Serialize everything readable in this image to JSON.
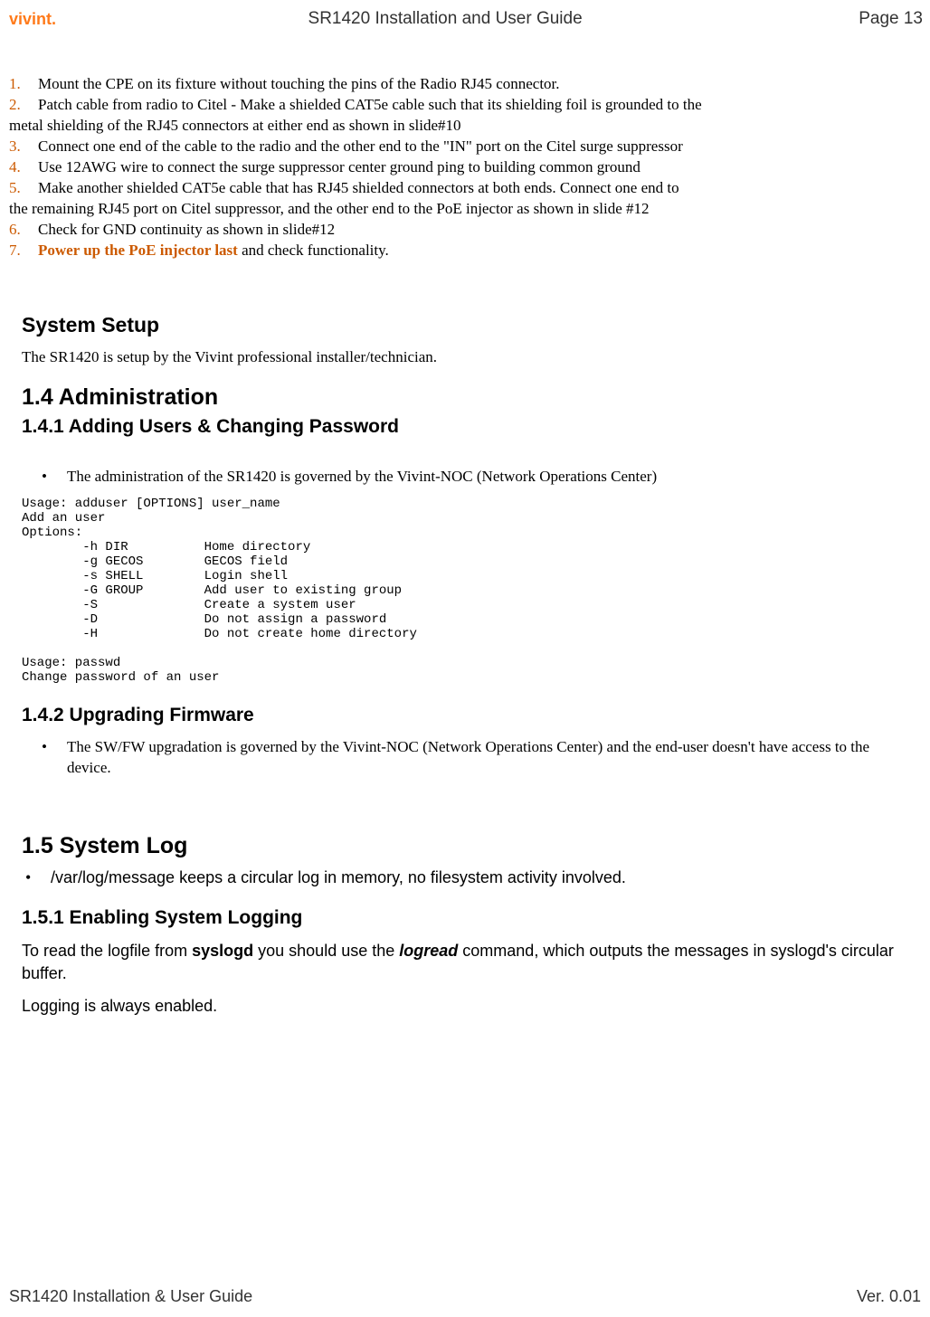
{
  "header": {
    "logo": "vivint.",
    "title": "SR1420 Installation and User Guide",
    "page": "Page 13"
  },
  "ol": {
    "items": [
      {
        "num": "1.",
        "num_color": "#cc5a00",
        "html": "Mount the CPE on its fixture without touching the pins of the Radio RJ45 connector."
      },
      {
        "num": "2.",
        "num_color": "#cc5a00",
        "html": "Patch cable from radio to Citel - Make a shielded CAT5e cable such that its shielding foil is grounded to the",
        "cont": "metal shielding of the RJ45 connectors at either end as shown in slide#10"
      },
      {
        "num": "3.",
        "num_color": "#cc5a00",
        "html": "Connect one end of the cable to the radio and the other end to the \"IN\" port on the Citel surge suppressor"
      },
      {
        "num": "4.",
        "num_color": "#cc5a00",
        "html": "Use 12AWG wire to connect the surge suppressor center ground ping to building common ground"
      },
      {
        "num": "5.",
        "num_color": "#cc5a00",
        "html": "Make another shielded CAT5e cable that has RJ45 shielded connectors at both ends. Connect one end to",
        "cont": "the remaining RJ45 port on Citel suppressor, and the other end to the PoE injector as shown in slide #12"
      },
      {
        "num": "6.",
        "num_color": "#cc5a00",
        "html": "Check for GND continuity as shown in slide#12"
      },
      {
        "num": "7.",
        "num_color": "#cc5a00",
        "prefix_bold": "Power up the PoE injector last",
        "prefix_color": "#cc5a00",
        "html": " and check functionality."
      }
    ]
  },
  "system_setup": {
    "heading": "System Setup",
    "text": "The SR1420 is setup by the Vivint professional installer/technician."
  },
  "s14": {
    "heading": "1.4   Administration",
    "s141": {
      "heading": "1.4.1 Adding Users & Changing Password",
      "bullet": "The administration of the SR1420 is governed by the Vivint-NOC (Network Operations Center)",
      "usage": "Usage: adduser [OPTIONS] user_name\nAdd an user\nOptions:\n        -h DIR          Home directory\n        -g GECOS        GECOS field\n        -s SHELL        Login shell\n        -G GROUP        Add user to existing group\n        -S              Create a system user\n        -D              Do not assign a password\n        -H              Do not create home directory\n\nUsage: passwd\nChange password of an user"
    },
    "s142": {
      "heading": "1.4.2 Upgrading Firmware",
      "bullet": "The SW/FW upgradation is governed by the Vivint-NOC (Network Operations Center) and the end-user doesn't have access to the device."
    }
  },
  "s15": {
    "heading": "1.5   System Log",
    "bullet": "/var/log/message keeps a circular log in memory, no filesystem activity involved.",
    "s151": {
      "heading": "1.5.1 Enabling System Logging",
      "p1_a": "To read the logfile from ",
      "p1_b": "syslogd",
      "p1_c": " you should use the ",
      "p1_d": "logread",
      "p1_e": " command, which outputs the messages in syslogd's circular buffer.",
      "p2": "Logging is always enabled."
    }
  },
  "footer": {
    "left": "SR1420 Installation & User Guide",
    "right": "Ver. 0.01"
  }
}
